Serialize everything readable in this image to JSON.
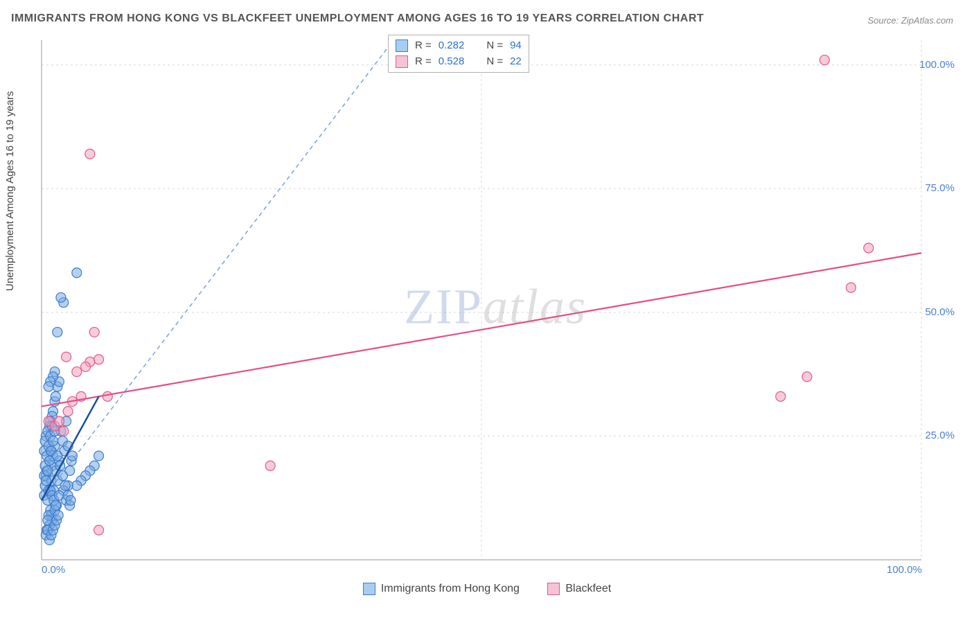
{
  "title": "IMMIGRANTS FROM HONG KONG VS BLACKFEET UNEMPLOYMENT AMONG AGES 16 TO 19 YEARS CORRELATION CHART",
  "source": "Source: ZipAtlas.com",
  "watermark": {
    "part1": "ZIP",
    "part2": "atlas"
  },
  "chart": {
    "type": "scatter",
    "xlim": [
      0,
      100
    ],
    "ylim": [
      0,
      105
    ],
    "x_ticks": [
      0,
      50,
      100
    ],
    "x_tick_labels": [
      "0.0%",
      "",
      "100.0%"
    ],
    "y_ticks": [
      25,
      50,
      75,
      100
    ],
    "y_tick_labels": [
      "25.0%",
      "50.0%",
      "75.0%",
      "100.0%"
    ],
    "grid_color": "#d7d7d7",
    "axis_color": "#b8b8b8",
    "background_color": "#ffffff",
    "y_axis_label": "Unemployment Among Ages 16 to 19 years",
    "marker_radius": 7,
    "marker_stroke_width": 1.2,
    "trend_line_width": 2.2,
    "trend_line_dash_blue": "6,5",
    "series": [
      {
        "key": "hk",
        "label": "Immigrants from Hong Kong",
        "fill": "rgba(120,170,230,0.55)",
        "stroke": "#3d7cc9",
        "swatch_fill": "#a9cdf0",
        "swatch_border": "#3d7cc9",
        "R": "0.282",
        "N": "94",
        "trend": {
          "x1": 0,
          "y1": 12,
          "x2": 40,
          "y2": 105,
          "dashed": true,
          "color": "#3d7cc9"
        },
        "trend_solid_segment": {
          "x1": 0,
          "y1": 12,
          "x2": 6.5,
          "y2": 33,
          "color": "#1a4fa0"
        },
        "points": [
          [
            0.3,
            13
          ],
          [
            0.4,
            15
          ],
          [
            0.5,
            17
          ],
          [
            0.6,
            18
          ],
          [
            0.7,
            12
          ],
          [
            0.8,
            14
          ],
          [
            0.9,
            20
          ],
          [
            1.0,
            22
          ],
          [
            1.1,
            16
          ],
          [
            1.2,
            19
          ],
          [
            1.3,
            21
          ],
          [
            1.4,
            14
          ],
          [
            1.5,
            23
          ],
          [
            1.6,
            18
          ],
          [
            1.7,
            11
          ],
          [
            1.8,
            16
          ],
          [
            1.0,
            10
          ],
          [
            1.1,
            9
          ],
          [
            1.2,
            8
          ],
          [
            0.9,
            7
          ],
          [
            0.8,
            9
          ],
          [
            0.7,
            8
          ],
          [
            0.6,
            6
          ],
          [
            1.5,
            10
          ],
          [
            2.0,
            20
          ],
          [
            2.2,
            26
          ],
          [
            2.4,
            24
          ],
          [
            2.6,
            22
          ],
          [
            2.8,
            28
          ],
          [
            3.0,
            23
          ],
          [
            3.2,
            18
          ],
          [
            3.4,
            20
          ],
          [
            1.3,
            30
          ],
          [
            1.5,
            32
          ],
          [
            1.8,
            35
          ],
          [
            2.0,
            36
          ],
          [
            1.2,
            29
          ],
          [
            1.0,
            28
          ],
          [
            0.9,
            27
          ],
          [
            1.6,
            33
          ],
          [
            0.5,
            25
          ],
          [
            0.7,
            26
          ],
          [
            0.4,
            24
          ],
          [
            0.3,
            22
          ],
          [
            1.0,
            14
          ],
          [
            1.2,
            13
          ],
          [
            1.4,
            12
          ],
          [
            1.6,
            11
          ],
          [
            4.0,
            58
          ],
          [
            2.5,
            52
          ],
          [
            2.2,
            53
          ],
          [
            1.8,
            46
          ],
          [
            1.5,
            38
          ],
          [
            1.3,
            37
          ],
          [
            1.0,
            36
          ],
          [
            0.8,
            35
          ],
          [
            6.5,
            21
          ],
          [
            6.0,
            19
          ],
          [
            5.5,
            18
          ],
          [
            5.0,
            17
          ],
          [
            4.5,
            16
          ],
          [
            4.0,
            15
          ],
          [
            3.5,
            21
          ],
          [
            3.0,
            15
          ],
          [
            2.5,
            14
          ],
          [
            2.0,
            13
          ],
          [
            2.8,
            12
          ],
          [
            3.2,
            11
          ],
          [
            0.5,
            5
          ],
          [
            0.7,
            6
          ],
          [
            0.9,
            4
          ],
          [
            1.1,
            5
          ],
          [
            1.3,
            6
          ],
          [
            1.5,
            7
          ],
          [
            1.7,
            8
          ],
          [
            1.9,
            9
          ],
          [
            0.4,
            19
          ],
          [
            0.6,
            21
          ],
          [
            0.8,
            23
          ],
          [
            1.0,
            25
          ],
          [
            1.2,
            27
          ],
          [
            0.3,
            17
          ],
          [
            0.5,
            16
          ],
          [
            0.7,
            18
          ],
          [
            0.9,
            20
          ],
          [
            1.1,
            22
          ],
          [
            1.3,
            24
          ],
          [
            1.5,
            26
          ],
          [
            1.8,
            21
          ],
          [
            2.1,
            19
          ],
          [
            2.4,
            17
          ],
          [
            2.7,
            15
          ],
          [
            3.0,
            13
          ],
          [
            3.3,
            12
          ]
        ]
      },
      {
        "key": "bf",
        "label": "Blackfeet",
        "fill": "rgba(240,160,190,0.55)",
        "stroke": "#e05a8a",
        "swatch_fill": "#f4c3d6",
        "swatch_border": "#e05a8a",
        "R": "0.528",
        "N": "22",
        "trend": {
          "x1": 0,
          "y1": 31,
          "x2": 100,
          "y2": 62,
          "dashed": false,
          "color": "#e84b86"
        },
        "points": [
          [
            0.8,
            28
          ],
          [
            1.5,
            27
          ],
          [
            2.0,
            28
          ],
          [
            2.5,
            26
          ],
          [
            3.5,
            32
          ],
          [
            4.5,
            33
          ],
          [
            5.5,
            40
          ],
          [
            6.5,
            40.5
          ],
          [
            6.0,
            46
          ],
          [
            5.0,
            39
          ],
          [
            5.5,
            82
          ],
          [
            7.5,
            33
          ],
          [
            26,
            19
          ],
          [
            6.5,
            6
          ],
          [
            84,
            33
          ],
          [
            87,
            37
          ],
          [
            92,
            55
          ],
          [
            94,
            63
          ],
          [
            89,
            101
          ],
          [
            3.0,
            30
          ],
          [
            4.0,
            38
          ],
          [
            2.8,
            41
          ]
        ]
      }
    ],
    "stat_legend": {
      "r_label": "R =",
      "n_label": "N ="
    },
    "font_sizes": {
      "title": 16,
      "axis_label": 15,
      "tick": 15,
      "legend": 15,
      "watermark": 72
    },
    "colors": {
      "title": "#555555",
      "source": "#888888",
      "tick_label": "#4a7fd6",
      "stat_value": "#2a6fd6",
      "stat_text": "#444444"
    }
  }
}
